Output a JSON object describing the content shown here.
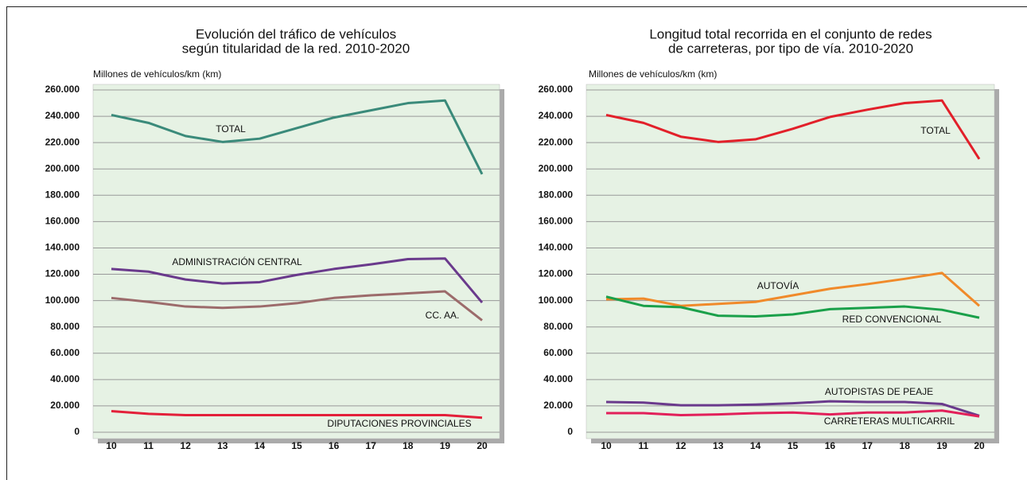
{
  "chart_data": [
    {
      "type": "line",
      "title": [
        "Evolución del tráfico de vehículos",
        "según titularidad de la red. 2010-2020"
      ],
      "y_label": "Millones de vehículos/km (km)",
      "categories": [
        "10",
        "11",
        "12",
        "13",
        "14",
        "15",
        "16",
        "17",
        "18",
        "19",
        "20"
      ],
      "ylim": [
        0,
        260000
      ],
      "yticks": [
        0,
        {
          "value": 20000,
          "label": "20.000"
        },
        {
          "value": 40000,
          "label": "40.000"
        },
        {
          "value": 60000,
          "label": "60.000"
        },
        {
          "value": 80000,
          "label": "80.000"
        },
        {
          "value": 100000,
          "label": "100.000"
        },
        {
          "value": 120000,
          "label": "120.000"
        },
        {
          "value": 140000,
          "label": "140.000"
        },
        {
          "value": 160000,
          "label": "160.000"
        },
        {
          "value": 180000,
          "label": "180.000"
        },
        {
          "value": 200000,
          "label": "200.000"
        },
        {
          "value": 220000,
          "label": "220.000"
        },
        {
          "value": 240000,
          "label": "240.000"
        },
        {
          "value": 260000,
          "label": "260.000"
        }
      ],
      "grid": true,
      "series": [
        {
          "name": "TOTAL",
          "color": "#3a8a7a",
          "values": [
            241000,
            235000,
            225000,
            220500,
            223000,
            231000,
            239000,
            244500,
            250000,
            252000,
            196000
          ]
        },
        {
          "name": "ADMINISTRACIÓN CENTRAL",
          "color": "#6a3a8c",
          "values": [
            124000,
            122000,
            116000,
            113000,
            114000,
            119500,
            124000,
            127500,
            131500,
            132000,
            98500
          ]
        },
        {
          "name": "CC. AA.",
          "color": "#9c6b6b",
          "values": [
            102000,
            99000,
            95500,
            94500,
            95500,
            98000,
            102000,
            104000,
            105500,
            107000,
            85000
          ]
        },
        {
          "name": "DIPUTACIONES PROVINCIALES",
          "color": "#e3203a",
          "values": [
            16000,
            14000,
            13000,
            13000,
            13000,
            13000,
            13000,
            13000,
            13000,
            13000,
            11000
          ]
        }
      ]
    },
    {
      "type": "line",
      "title": [
        "Longitud  total recorrida en el conjunto de redes",
        "de carreteras, por tipo de vía. 2010-2020"
      ],
      "y_label": "Millones de vehículos/km (km)",
      "categories": [
        "10",
        "11",
        "12",
        "13",
        "14",
        "15",
        "16",
        "17",
        "18",
        "19",
        "20"
      ],
      "ylim": [
        0,
        260000
      ],
      "yticks": [
        0,
        {
          "value": 20000,
          "label": "20.000"
        },
        {
          "value": 40000,
          "label": "40.000"
        },
        {
          "value": 60000,
          "label": "60.000"
        },
        {
          "value": 80000,
          "label": "80.000"
        },
        {
          "value": 100000,
          "label": "100.000"
        },
        {
          "value": 120000,
          "label": "120.000"
        },
        {
          "value": 140000,
          "label": "140.000"
        },
        {
          "value": 160000,
          "label": "160.000"
        },
        {
          "value": 180000,
          "label": "180.000"
        },
        {
          "value": 200000,
          "label": "200.000"
        },
        {
          "value": 220000,
          "label": "220.000"
        },
        {
          "value": 240000,
          "label": "240.000"
        },
        {
          "value": 260000,
          "label": "260.000"
        }
      ],
      "grid": true,
      "series": [
        {
          "name": "TOTAL",
          "color": "#e2202a",
          "values": [
            241000,
            235000,
            224500,
            220500,
            222500,
            230500,
            239500,
            245000,
            250000,
            252000,
            207500
          ]
        },
        {
          "name": "AUTOVÍA",
          "color": "#f08a2a",
          "values": [
            101000,
            101500,
            96000,
            97500,
            99000,
            104000,
            109000,
            112500,
            116500,
            121000,
            96000
          ]
        },
        {
          "name": "RED CONVENCIONAL",
          "color": "#1aa04a",
          "values": [
            103000,
            96000,
            95000,
            88500,
            88000,
            89500,
            93500,
            94500,
            95500,
            93000,
            87000
          ]
        },
        {
          "name": "AUTOPISTAS DE PEAJE",
          "color": "#6a3a8c",
          "values": [
            23000,
            22500,
            20500,
            20500,
            21000,
            22000,
            23500,
            23000,
            23000,
            21500,
            12500
          ]
        },
        {
          "name": "CARRETERAS MULTICARRIL",
          "color": "#e2205a",
          "values": [
            14500,
            14500,
            13000,
            13500,
            14500,
            15000,
            13500,
            15000,
            15000,
            16500,
            12000
          ]
        }
      ]
    }
  ]
}
